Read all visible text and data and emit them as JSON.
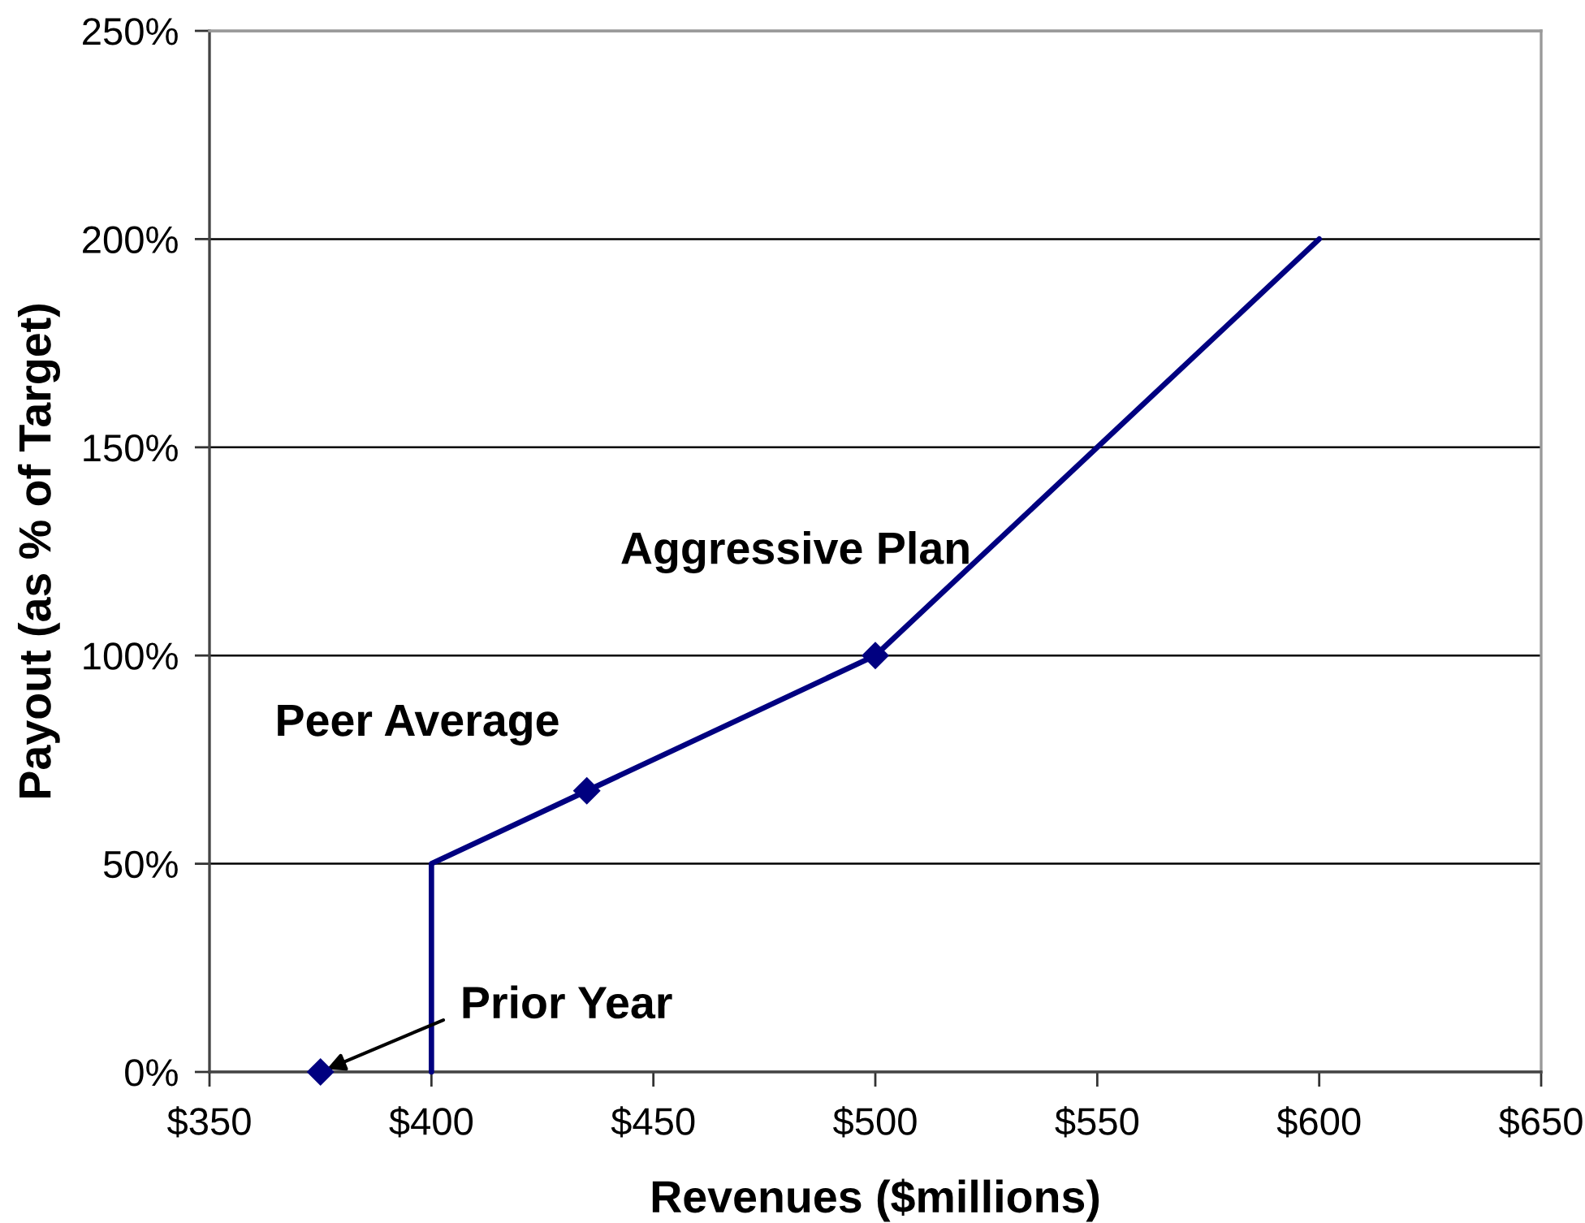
{
  "chart_data": {
    "type": "line",
    "xlabel": "Revenues ($millions)",
    "ylabel": "Payout (as % of Target)",
    "series": [
      {
        "color": "#000080",
        "x": [
          400,
          400,
          435,
          500,
          600
        ],
        "values": [
          0,
          50,
          67.5,
          100,
          200
        ],
        "marker": "none",
        "line_style": "solid"
      },
      {
        "type": "scatter",
        "color": "#000080",
        "x": [
          375,
          435,
          500
        ],
        "values": [
          0,
          67.5,
          100
        ],
        "marker": "diamond"
      }
    ],
    "xlim": [
      350,
      650
    ],
    "xticks": [
      {
        "value": 350,
        "label": "$350"
      },
      {
        "value": 400,
        "label": "$400"
      },
      {
        "value": 450,
        "label": "$450"
      },
      {
        "value": 500,
        "label": "$500"
      },
      {
        "value": 550,
        "label": "$550"
      },
      {
        "value": 600,
        "label": "$600"
      },
      {
        "value": 650,
        "label": "$650"
      }
    ],
    "ylim": [
      0,
      250
    ],
    "yticks": [
      {
        "value": 0,
        "label": "0%"
      },
      {
        "value": 50,
        "label": "50%"
      },
      {
        "value": 100,
        "label": "100%"
      },
      {
        "value": 150,
        "label": "150%"
      },
      {
        "value": 200,
        "label": "200%"
      },
      {
        "value": 250,
        "label": "250%"
      }
    ],
    "grid": "y",
    "annotations": [
      "Aggressive Plan",
      "Peer Average",
      {
        "text": "Prior Year",
        "x": 375,
        "y": 0
      }
    ]
  }
}
